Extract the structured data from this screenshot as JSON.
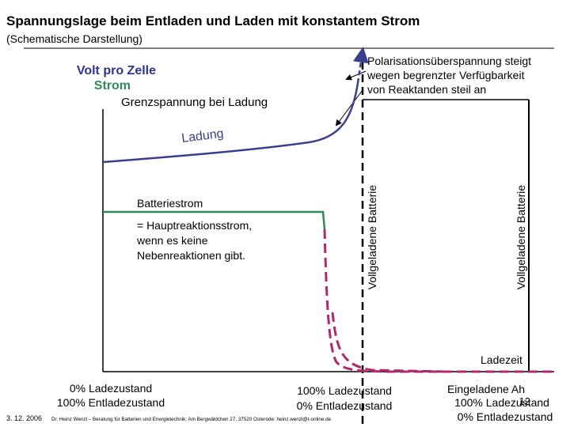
{
  "header": {
    "title": "Spannungslage beim Entladen und Laden mit konstantem Strom",
    "subtitle": "(Schematische Darstellung)"
  },
  "axis_labels": {
    "volt": "Volt pro Zelle",
    "current": "Strom",
    "limit": "Grenzspannung bei Ladung",
    "time": "Ladezeit"
  },
  "annotation": {
    "lines": [
      "Polarisationsüberspannung steigt",
      "wegen begrenzter Verfügbarkeit",
      "von Reaktanden steil an"
    ]
  },
  "curve_labels": {
    "charge": "Ladung",
    "current": "Batteriestrom",
    "current_note": [
      " = Hauptreaktionsstrom,",
      "wenn es keine",
      "Nebenreaktionen gibt."
    ]
  },
  "markers": {
    "full_1": "Vollgeladene Batterie",
    "full_2": "Vollgeladene Batterie"
  },
  "states": {
    "start": [
      "0% Ladezustand",
      "100% Entladezustand"
    ],
    "middle": [
      "100% Ladezustand",
      "0% Entladezustand"
    ],
    "end": [
      "Eingeladene Ah",
      "100% Ladezustand",
      "0% Entladezustand"
    ]
  },
  "footer": {
    "date": "3. 12. 2006",
    "author": "Dr. Heinz Wenzl – Beratung für Batterien und Energietechnik: Am Bergwäldchen 27, 37520 Osterode: heinz.wenzl@t-online.de",
    "page": "12"
  }
}
